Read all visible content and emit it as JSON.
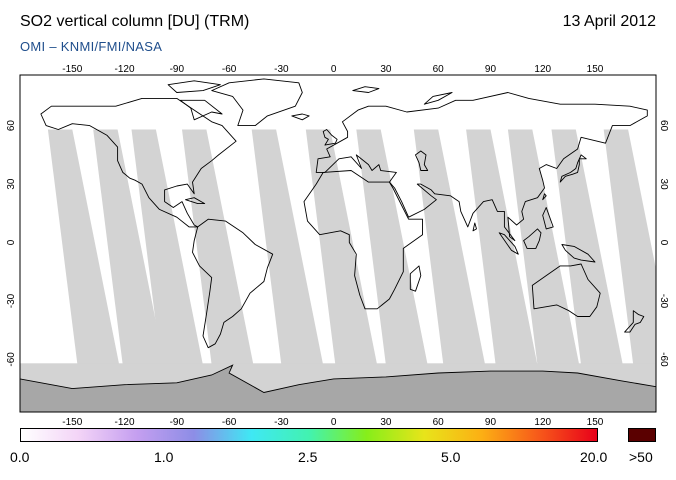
{
  "header": {
    "title": "SO2 vertical column [DU] (TRM)",
    "date": "13 April 2012",
    "credit": "OMI  –  KNMI/FMI/NASA"
  },
  "map": {
    "lon_ticks": [
      "-150",
      "-120",
      "-90",
      "-60",
      "-30",
      "0",
      "30",
      "60",
      "90",
      "120",
      "150"
    ],
    "lat_ticks": [
      "60",
      "30",
      "0",
      "-30",
      "-60"
    ],
    "colors": {
      "ocean": "#ffffff",
      "missing_swath": "#d3d3d3",
      "land_gap": "#a7a7a7",
      "coast": "#000000"
    }
  },
  "colorbar": {
    "labels": [
      "0.0",
      "1.0",
      "2.5",
      "5.0",
      "20.0"
    ],
    "over_label": ">50",
    "stops": [
      "#ffffff",
      "#f3d4f7",
      "#c59ff0",
      "#8d8de6",
      "#3fe8f4",
      "#42f2b0",
      "#86ee1a",
      "#e8e41a",
      "#fcaf14",
      "#f7581a",
      "#e8001a"
    ],
    "over_color": "#5a0000"
  }
}
